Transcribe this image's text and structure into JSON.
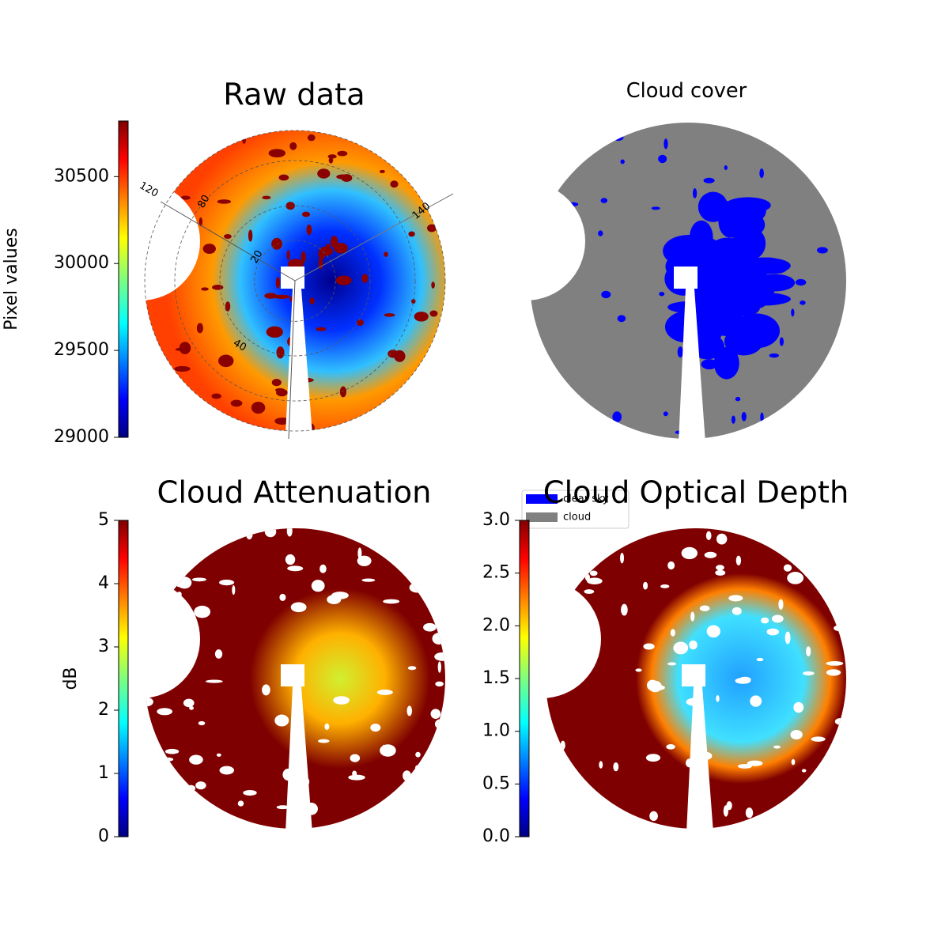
{
  "chart_data": [
    {
      "type": "image",
      "title": "Raw data",
      "colormap": "jet",
      "colorbar": {
        "label": "Pixel values",
        "lim": [
          29000,
          30820
        ],
        "ticks": [
          29000,
          29500,
          30000,
          30500
        ]
      },
      "annotations": [
        "120",
        "80",
        "20",
        "40",
        "140"
      ]
    },
    {
      "type": "image",
      "title": "Cloud cover",
      "legend": [
        {
          "name": "clear sky",
          "color": "#0000ff"
        },
        {
          "name": "cloud",
          "color": "#808080"
        }
      ]
    },
    {
      "type": "image",
      "title": "Cloud Attenuation",
      "colormap": "jet",
      "colorbar": {
        "label": "dB",
        "lim": [
          0,
          5
        ],
        "ticks": [
          0,
          1,
          2,
          3,
          4,
          5
        ]
      }
    },
    {
      "type": "image",
      "title": "Cloud Optical Depth",
      "colormap": "jet",
      "colorbar": {
        "lim": [
          0,
          3
        ],
        "ticks": [
          {
            "value": 0,
            "label": "0.0"
          },
          0.5,
          {
            "value": 1,
            "label": "1.0"
          },
          1.5,
          {
            "value": 2,
            "label": "2.0"
          },
          2.5,
          {
            "value": 3,
            "label": "3.0"
          }
        ]
      }
    }
  ]
}
